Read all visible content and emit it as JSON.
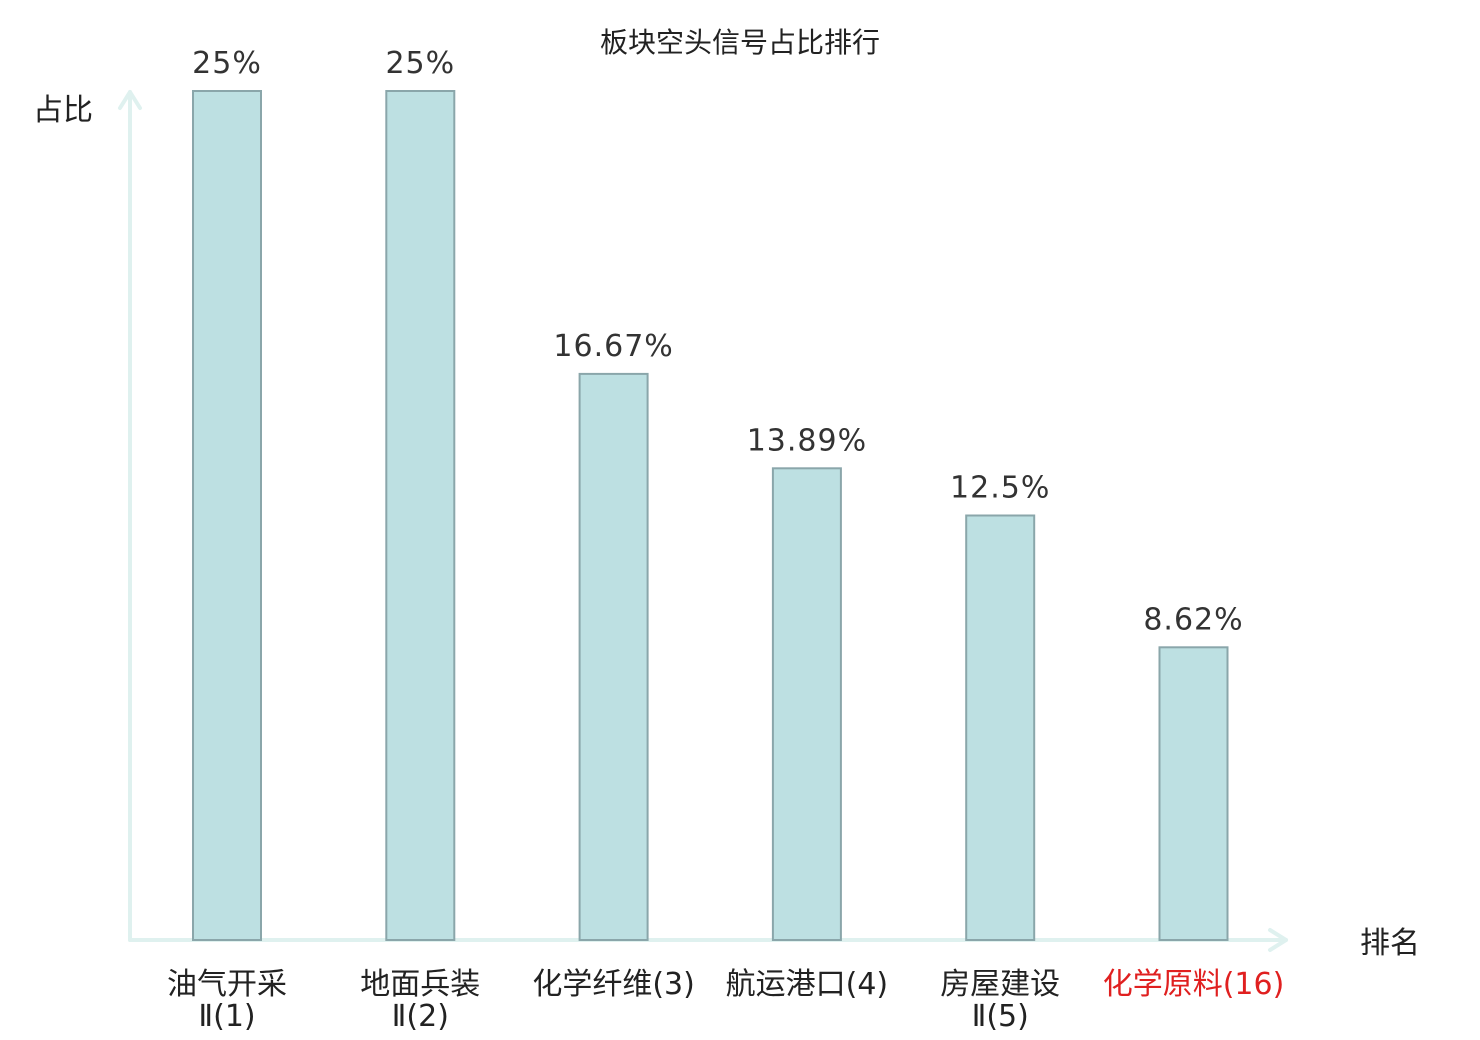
{
  "chart_data": {
    "type": "bar",
    "title": "板块空头信号占比排行",
    "ylabel": "占比",
    "xlabel": "排名",
    "ylim": [
      0,
      25
    ],
    "grid": false,
    "categories": [
      {
        "lines": [
          "油气开采",
          "Ⅱ(1)"
        ],
        "highlight": false
      },
      {
        "lines": [
          "地面兵装",
          "Ⅱ(2)"
        ],
        "highlight": false
      },
      {
        "lines": [
          "化学纤维(3)"
        ],
        "highlight": false
      },
      {
        "lines": [
          "航运港口(4)"
        ],
        "highlight": false
      },
      {
        "lines": [
          "房屋建设",
          "Ⅱ(5)"
        ],
        "highlight": false
      },
      {
        "lines": [
          "化学原料(16)"
        ],
        "highlight": true
      }
    ],
    "values": [
      25,
      25,
      16.67,
      13.89,
      12.5,
      8.62
    ],
    "value_labels": [
      "25%",
      "25%",
      "16.67%",
      "13.89%",
      "12.5%",
      "8.62%"
    ]
  },
  "colors": {
    "bar_fill": "#bde0e2",
    "bar_stroke": "#8aa6aa",
    "axis": "#dff1ef",
    "text": "#222222",
    "highlight": "#e02020"
  }
}
